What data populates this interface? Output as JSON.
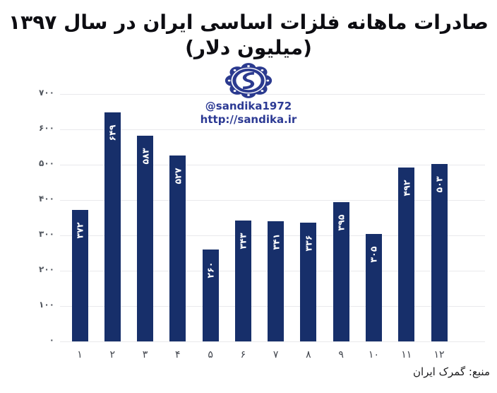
{
  "title": "صادرات ماهانه فلزات اساسی ایران در سال ۱۳۹۷ (میلیون دلار)",
  "watermark": {
    "logo": "sandika-emblem",
    "handle": "@sandika1972",
    "url": "http://sandika.ir"
  },
  "source_note": "منبع: گمرک ایران",
  "colors": {
    "bar": "#172f6a",
    "brand_blue": "#2c3a94",
    "emblem_navy": "#2b3a8f",
    "grid": "#e9e9ec",
    "axis_text": "#51565e",
    "title_text": "#0d0d12"
  },
  "chart_data": {
    "type": "bar",
    "title": "صادرات ماهانه فلزات اساسی ایران در سال ۱۳۹۷ (میلیون دلار)",
    "xlabel": "",
    "ylabel": "",
    "categories": [
      "۱",
      "۲",
      "۳",
      "۴",
      "۵",
      "۶",
      "۷",
      "۸",
      "۹",
      "۱۰",
      "۱۱",
      "۱۲"
    ],
    "values": [
      372,
      649,
      583,
      527,
      260,
      343,
      341,
      336,
      395,
      305,
      492,
      503
    ],
    "bar_labels": [
      "۳۷۲",
      "۶۴۹",
      "۵۸۳",
      "۵۲۷",
      "۲۶۰",
      "۳۴۳",
      "۳۴۱",
      "۳۳۶",
      "۳۹۵",
      "۳۰۵",
      "۴۹۲",
      "۵۰۳"
    ],
    "y_ticks": [
      {
        "value": 700,
        "label": "۷۰۰"
      },
      {
        "value": 600,
        "label": "۶۰۰"
      },
      {
        "value": 500,
        "label": "۵۰۰"
      },
      {
        "value": 400,
        "label": "۴۰۰"
      },
      {
        "value": 300,
        "label": "۳۰۰"
      },
      {
        "value": 200,
        "label": "۲۰۰"
      },
      {
        "value": 100,
        "label": "۱۰۰"
      },
      {
        "value": 0,
        "label": "۰"
      }
    ],
    "ylim": [
      0,
      700
    ],
    "grid": true,
    "legend": false
  }
}
